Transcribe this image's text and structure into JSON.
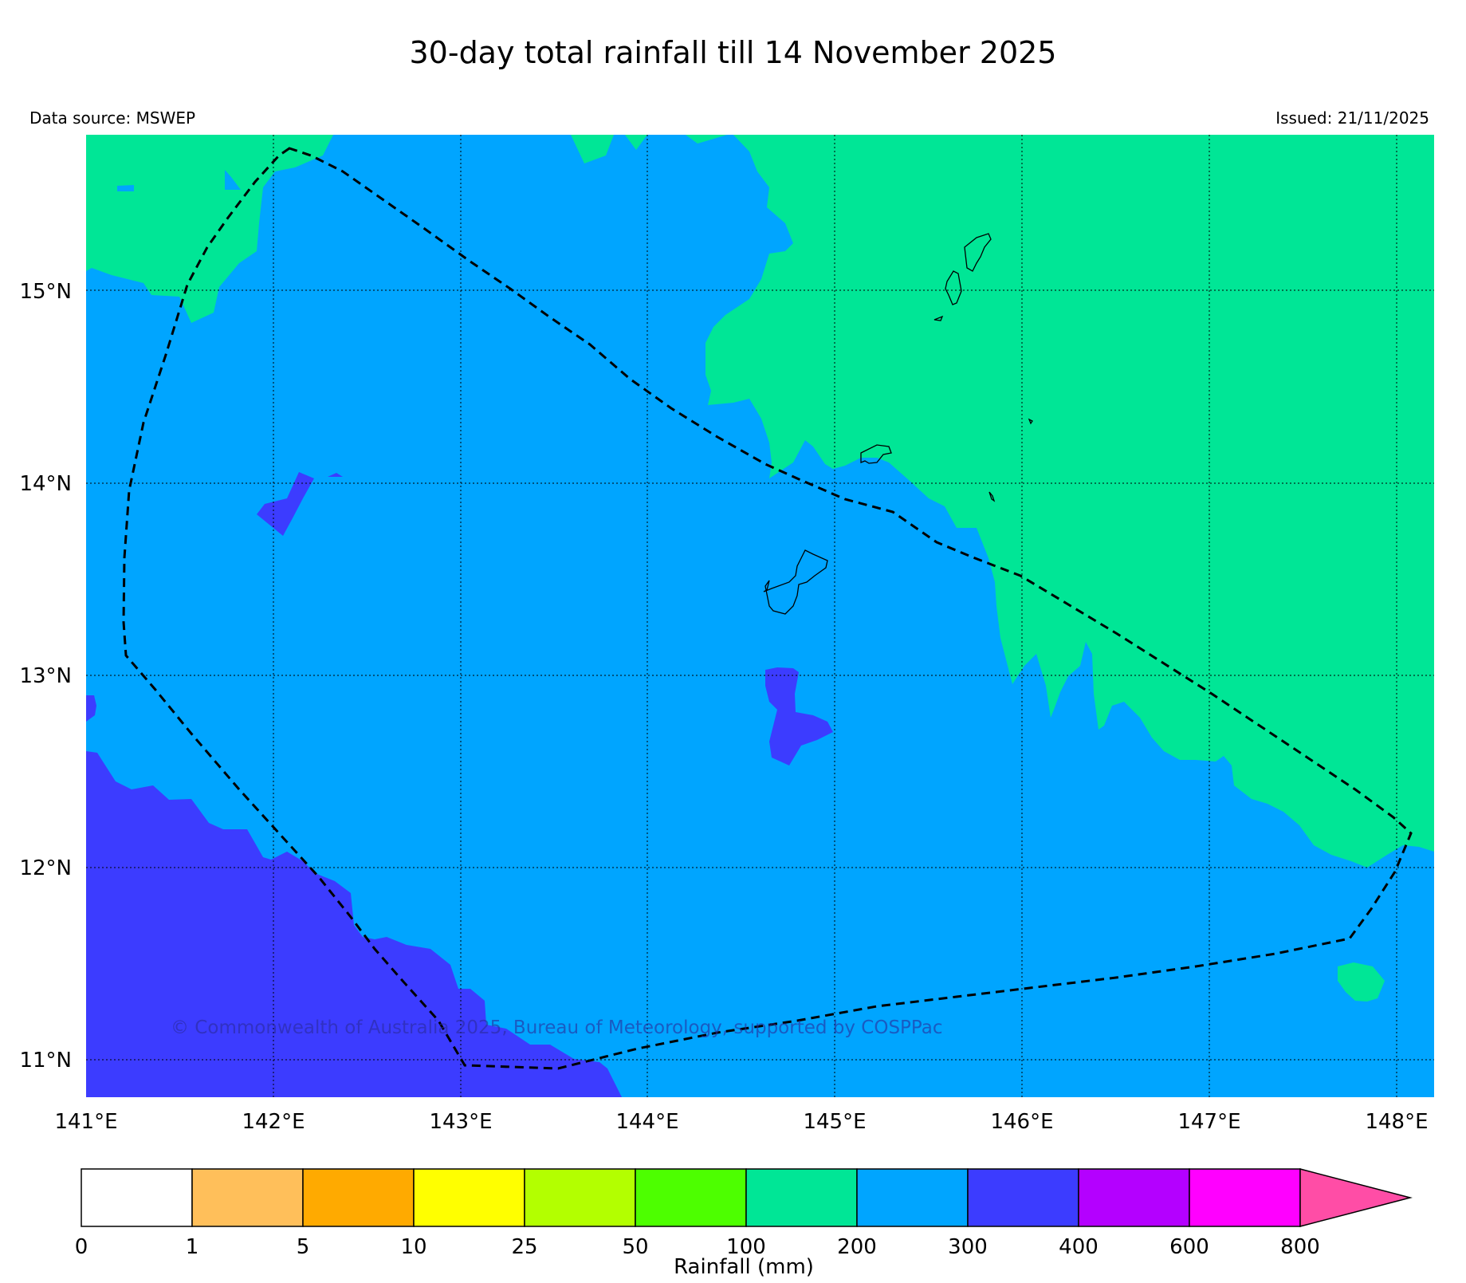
{
  "title": "30-day total rainfall till 14 November 2025",
  "data_source": "Data source: MSWEP",
  "issued": "Issued: 21/11/2025",
  "copyright": "© Commonwealth of Australia 2025, Bureau of Meteorology, supported by COSPPac",
  "lat_labels": [
    "15°N",
    "14°N",
    "13°N",
    "12°N",
    "11°N"
  ],
  "lon_labels": [
    "141°E",
    "142°E",
    "143°E",
    "144°E",
    "145°E",
    "146°E",
    "147°E",
    "148°E"
  ],
  "colorbar": {
    "label": "Rainfall (mm)",
    "ticks": [
      "0",
      "1",
      "5",
      "10",
      "25",
      "50",
      "100",
      "200",
      "300",
      "400",
      "600",
      "800"
    ],
    "colors": [
      "#ffffff",
      "#ffbf5a",
      "#ffaa00",
      "#ffff00",
      "#b3ff00",
      "#4dff00",
      "#00e696",
      "#00a5ff",
      "#3c3cff",
      "#b400ff",
      "#ff00ff",
      "#ff4da6"
    ]
  },
  "legend_colors": {
    "band_100_200": "#00e696",
    "band_200_300": "#00a5ff",
    "band_300_400": "#3c3cff"
  }
}
